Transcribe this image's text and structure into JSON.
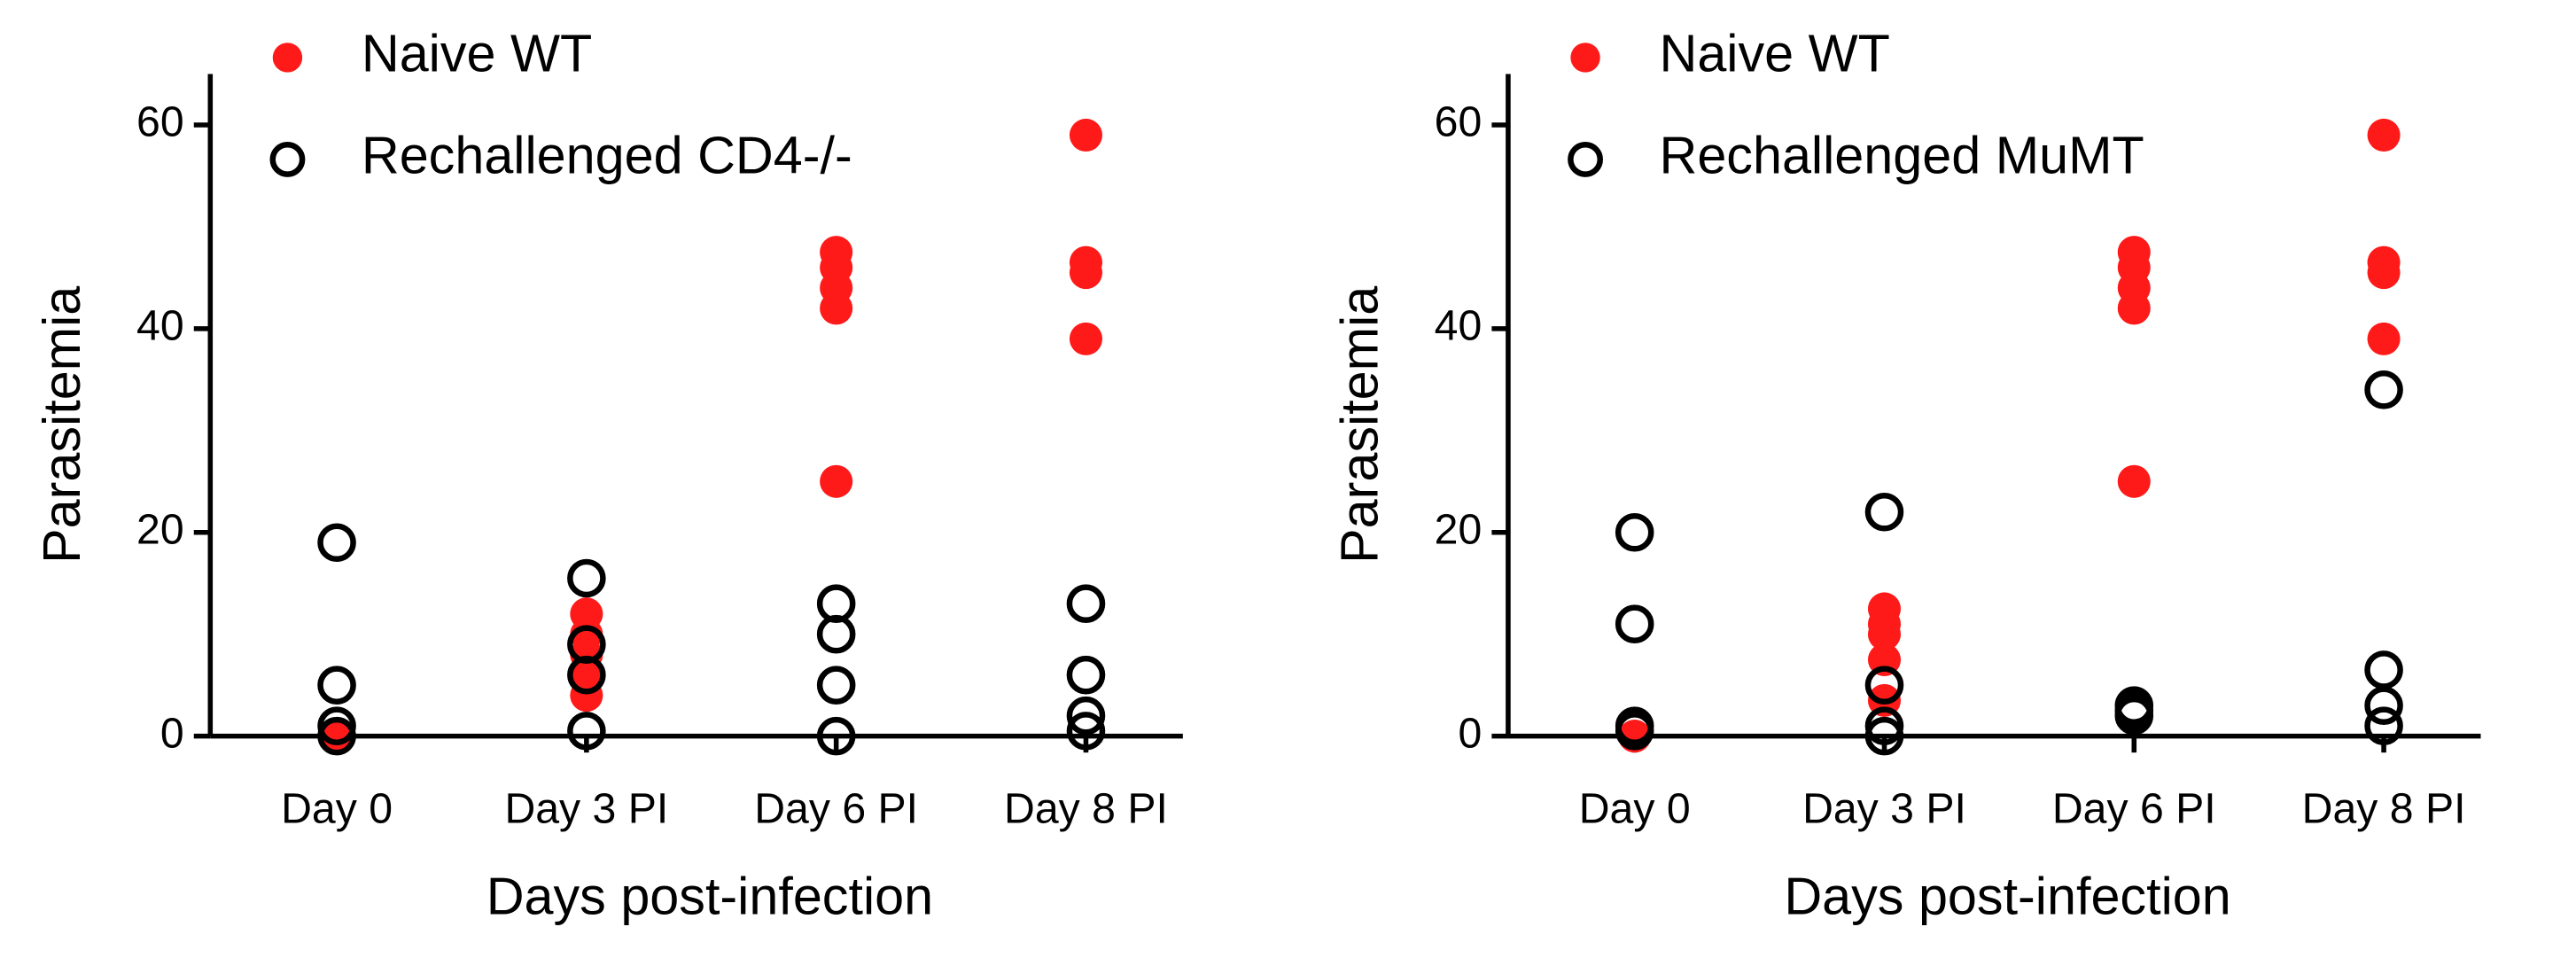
{
  "chart_data": [
    {
      "type": "scatter",
      "xlabel": "Days post-infection",
      "ylabel": "Parasitemia",
      "categories": [
        "Day 0",
        "Day 3 PI",
        "Day 6 PI",
        "Day 8 PI"
      ],
      "ylim": [
        0,
        65
      ],
      "yticks": [
        0,
        20,
        40,
        60
      ],
      "series": [
        {
          "name": "Naive WT",
          "color": "#ff1a1a",
          "marker": "filled",
          "x": [
            0,
            0,
            1,
            1,
            1,
            1,
            1,
            2,
            2,
            2,
            2,
            2,
            3,
            3,
            3,
            3
          ],
          "values": [
            0,
            0,
            12,
            10,
            8,
            6,
            4,
            47.5,
            46,
            44,
            42,
            25,
            59,
            46.5,
            45.5,
            39
          ]
        },
        {
          "name": "Rechallenged CD4-/-",
          "color": "#000000",
          "marker": "open",
          "x": [
            0,
            0,
            0,
            0,
            1,
            1,
            1,
            1,
            2,
            2,
            2,
            2,
            3,
            3,
            3,
            3
          ],
          "values": [
            19,
            5,
            1,
            0,
            15.5,
            9,
            6,
            0.5,
            13,
            10,
            5,
            0,
            13,
            6,
            2,
            0.5
          ]
        }
      ]
    },
    {
      "type": "scatter",
      "xlabel": "Days post-infection",
      "ylabel": "Parasitemia",
      "categories": [
        "Day 0",
        "Day 3 PI",
        "Day 6 PI",
        "Day 8 PI"
      ],
      "ylim": [
        0,
        65
      ],
      "yticks": [
        0,
        20,
        40,
        60
      ],
      "series": [
        {
          "name": "Naive WT",
          "color": "#ff1a1a",
          "marker": "filled",
          "x": [
            0,
            0,
            1,
            1,
            1,
            1,
            1,
            2,
            2,
            2,
            2,
            2,
            3,
            3,
            3,
            3
          ],
          "values": [
            0,
            0,
            12.5,
            11,
            10,
            7.5,
            3.5,
            47.5,
            46,
            44,
            42,
            25,
            59,
            46.5,
            45.5,
            39
          ]
        },
        {
          "name": "Rechallenged MuMT",
          "color": "#000000",
          "marker": "open",
          "x": [
            0,
            0,
            0,
            0,
            1,
            1,
            1,
            1,
            2,
            2,
            2,
            3,
            3,
            3,
            3
          ],
          "values": [
            20,
            11,
            1,
            0.5,
            22,
            5,
            1,
            0,
            3,
            2.5,
            2,
            34,
            6.5,
            3,
            1
          ]
        }
      ]
    }
  ]
}
